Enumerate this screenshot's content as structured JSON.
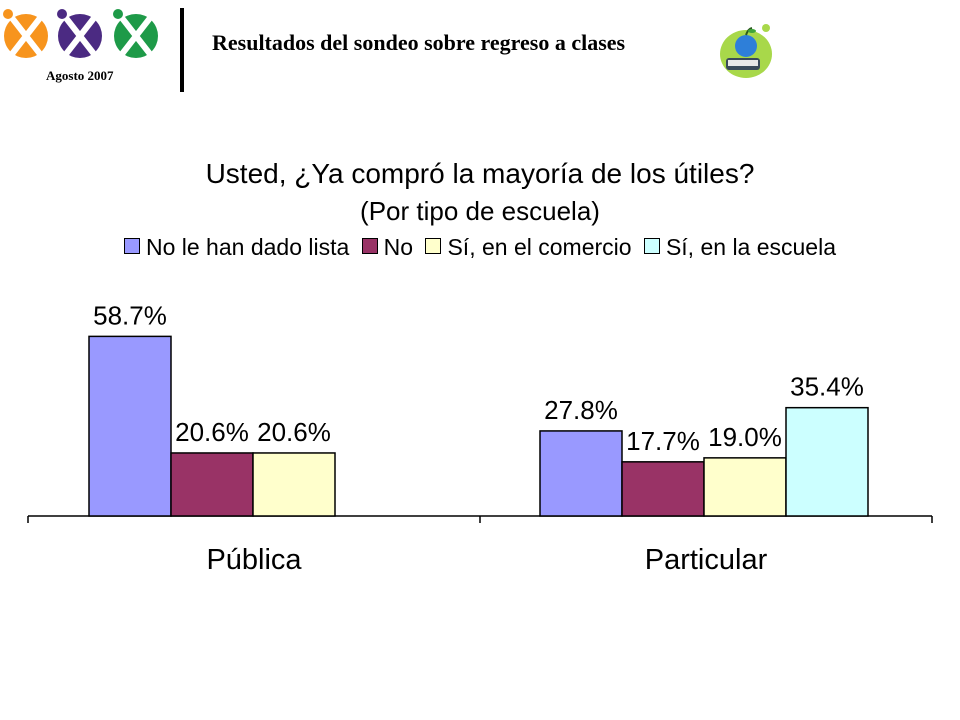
{
  "header": {
    "date": "Agosto 2007",
    "title": "Resultados del sondeo sobre regreso a clases",
    "logo_icon": "figures-logo-icon",
    "apple_icon": "apple-on-book-icon"
  },
  "chart_data": {
    "type": "bar",
    "title": "Usted, ¿Ya compró la mayoría de los útiles?",
    "subtitle": "(Por tipo de escuela)",
    "categories": [
      "Pública",
      "Particular"
    ],
    "legend_position": "top",
    "grid": false,
    "ylim": [
      0,
      70
    ],
    "series": [
      {
        "name": "No le han dado lista",
        "color": "#9999FF",
        "values": [
          58.7,
          27.8
        ],
        "labels": [
          "58.7%",
          "27.8%"
        ]
      },
      {
        "name": "No",
        "color": "#993366",
        "values": [
          20.6,
          17.7
        ],
        "labels": [
          "20.6%",
          "17.7%"
        ]
      },
      {
        "name": "Sí, en el comercio",
        "color": "#FFFFCC",
        "values": [
          20.6,
          19.0
        ],
        "labels": [
          "20.6%",
          "19.0%"
        ]
      },
      {
        "name": "Sí, en la escuela",
        "color": "#CCFFFF",
        "values": [
          null,
          35.4
        ],
        "labels": [
          null,
          "35.4%"
        ]
      }
    ]
  }
}
